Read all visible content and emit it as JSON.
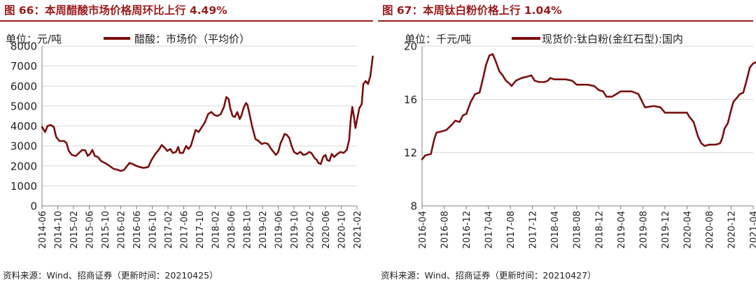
{
  "figures": [
    {
      "title": "图 66：本周醋酸市场价格周环比上行 4.49%",
      "source": "资料来源：Wind、招商证券（更新时间：20210425）"
    },
    {
      "title": "图 67：本周钛白粉价格上行 1.04%",
      "source": "资料来源：Wind、招商证券（更新时间：20210427）"
    }
  ],
  "chart_data": [
    {
      "type": "line",
      "unit_label": "单位：元/吨",
      "ylim": [
        0,
        8000
      ],
      "y_ticks": [
        0,
        1000,
        2000,
        3000,
        4000,
        5000,
        6000,
        7000,
        8000
      ],
      "x_tick_labels": [
        "2014-06",
        "2014-10",
        "2015-02",
        "2015-06",
        "2015-10",
        "2016-02",
        "2016-06",
        "2016-10",
        "2017-02",
        "2017-06",
        "2017-10",
        "2018-02",
        "2018-06",
        "2018-10",
        "2019-02",
        "2019-06",
        "2019-10",
        "2020-02",
        "2020-06",
        "2020-10",
        "2021-02"
      ],
      "grid": "horizontal",
      "line_color": "#7a0f0f",
      "legend_position": "top",
      "series": [
        {
          "name": "醋酸：市场价（平均价）",
          "points": [
            [
              0.0,
              3950
            ],
            [
              0.2,
              3700
            ],
            [
              0.35,
              4000
            ],
            [
              0.55,
              4050
            ],
            [
              0.75,
              3950
            ],
            [
              0.9,
              3450
            ],
            [
              1.1,
              3250
            ],
            [
              1.4,
              3250
            ],
            [
              1.55,
              3150
            ],
            [
              1.7,
              2750
            ],
            [
              1.9,
              2550
            ],
            [
              2.15,
              2500
            ],
            [
              2.35,
              2650
            ],
            [
              2.55,
              2800
            ],
            [
              2.75,
              2780
            ],
            [
              2.9,
              2500
            ],
            [
              3.05,
              2600
            ],
            [
              3.2,
              2800
            ],
            [
              3.35,
              2500
            ],
            [
              3.55,
              2450
            ],
            [
              3.75,
              2250
            ],
            [
              4.0,
              2150
            ],
            [
              4.3,
              2000
            ],
            [
              4.55,
              1850
            ],
            [
              4.75,
              1820
            ],
            [
              5.0,
              1750
            ],
            [
              5.2,
              1800
            ],
            [
              5.4,
              2000
            ],
            [
              5.55,
              2150
            ],
            [
              5.75,
              2100
            ],
            [
              6.0,
              2000
            ],
            [
              6.2,
              1950
            ],
            [
              6.45,
              1900
            ],
            [
              6.75,
              1950
            ],
            [
              6.95,
              2300
            ],
            [
              7.2,
              2600
            ],
            [
              7.45,
              2850
            ],
            [
              7.6,
              3050
            ],
            [
              7.8,
              2900
            ],
            [
              7.95,
              2750
            ],
            [
              8.15,
              2850
            ],
            [
              8.3,
              2650
            ],
            [
              8.5,
              2700
            ],
            [
              8.65,
              2950
            ],
            [
              8.75,
              2650
            ],
            [
              8.95,
              2650
            ],
            [
              9.15,
              3000
            ],
            [
              9.3,
              2850
            ],
            [
              9.45,
              3000
            ],
            [
              9.6,
              3400
            ],
            [
              9.75,
              3800
            ],
            [
              9.95,
              3700
            ],
            [
              10.15,
              3950
            ],
            [
              10.35,
              4200
            ],
            [
              10.55,
              4600
            ],
            [
              10.75,
              4700
            ],
            [
              10.95,
              4550
            ],
            [
              11.15,
              4500
            ],
            [
              11.35,
              4600
            ],
            [
              11.55,
              4950
            ],
            [
              11.7,
              5450
            ],
            [
              11.85,
              5350
            ],
            [
              11.95,
              4900
            ],
            [
              12.1,
              4500
            ],
            [
              12.25,
              4450
            ],
            [
              12.4,
              4700
            ],
            [
              12.55,
              4350
            ],
            [
              12.65,
              4500
            ],
            [
              12.8,
              4900
            ],
            [
              12.95,
              5150
            ],
            [
              13.05,
              5050
            ],
            [
              13.2,
              4500
            ],
            [
              13.35,
              3950
            ],
            [
              13.55,
              3350
            ],
            [
              13.75,
              3250
            ],
            [
              13.95,
              3100
            ],
            [
              14.15,
              3150
            ],
            [
              14.35,
              3100
            ],
            [
              14.55,
              2850
            ],
            [
              14.7,
              2700
            ],
            [
              14.85,
              2550
            ],
            [
              15.0,
              2700
            ],
            [
              15.15,
              3150
            ],
            [
              15.3,
              3400
            ],
            [
              15.4,
              3600
            ],
            [
              15.55,
              3550
            ],
            [
              15.7,
              3400
            ],
            [
              15.85,
              3000
            ],
            [
              16.0,
              2700
            ],
            [
              16.2,
              2600
            ],
            [
              16.4,
              2700
            ],
            [
              16.6,
              2550
            ],
            [
              16.8,
              2600
            ],
            [
              16.95,
              2700
            ],
            [
              17.1,
              2650
            ],
            [
              17.3,
              2400
            ],
            [
              17.45,
              2300
            ],
            [
              17.55,
              2150
            ],
            [
              17.7,
              2100
            ],
            [
              17.85,
              2450
            ],
            [
              18.0,
              2550
            ],
            [
              18.1,
              2300
            ],
            [
              18.25,
              2250
            ],
            [
              18.4,
              2600
            ],
            [
              18.55,
              2450
            ],
            [
              18.75,
              2600
            ],
            [
              18.95,
              2700
            ],
            [
              19.15,
              2650
            ],
            [
              19.35,
              2800
            ],
            [
              19.5,
              3300
            ],
            [
              19.6,
              4300
            ],
            [
              19.7,
              4950
            ],
            [
              19.8,
              4500
            ],
            [
              19.9,
              3900
            ],
            [
              20.0,
              4300
            ],
            [
              20.15,
              4900
            ],
            [
              20.3,
              5100
            ],
            [
              20.4,
              6100
            ],
            [
              20.55,
              6250
            ],
            [
              20.7,
              6100
            ],
            [
              20.85,
              6500
            ],
            [
              21.0,
              7480
            ]
          ]
        }
      ]
    },
    {
      "type": "line",
      "unit_label": "单位：千元/吨",
      "ylim": [
        8,
        20
      ],
      "y_ticks": [
        8,
        12,
        16,
        20
      ],
      "x_tick_labels": [
        "2016-04",
        "2016-08",
        "2016-12",
        "2017-04",
        "2017-08",
        "2017-12",
        "2018-04",
        "2018-08",
        "2018-12",
        "2019-04",
        "2019-08",
        "2019-12",
        "2020-04",
        "2020-08",
        "2020-12",
        "2021-04"
      ],
      "grid": "horizontal",
      "line_color": "#7a0f0f",
      "legend_position": "top",
      "series": [
        {
          "name": "现货价:钛白粉(金红石型):国内",
          "points": [
            [
              0.0,
              11.5
            ],
            [
              0.15,
              11.8
            ],
            [
              0.4,
              11.9
            ],
            [
              0.55,
              13.0
            ],
            [
              0.65,
              13.5
            ],
            [
              0.9,
              13.6
            ],
            [
              1.1,
              13.7
            ],
            [
              1.35,
              14.1
            ],
            [
              1.5,
              14.4
            ],
            [
              1.7,
              14.3
            ],
            [
              1.85,
              14.8
            ],
            [
              2.0,
              14.9
            ],
            [
              2.2,
              15.8
            ],
            [
              2.4,
              16.4
            ],
            [
              2.6,
              16.5
            ],
            [
              2.75,
              17.5
            ],
            [
              2.9,
              18.6
            ],
            [
              3.05,
              19.3
            ],
            [
              3.2,
              19.4
            ],
            [
              3.35,
              18.8
            ],
            [
              3.5,
              18.1
            ],
            [
              3.65,
              17.8
            ],
            [
              3.8,
              17.4
            ],
            [
              3.95,
              17.2
            ],
            [
              4.05,
              17.0
            ],
            [
              4.25,
              17.4
            ],
            [
              4.5,
              17.6
            ],
            [
              4.75,
              17.7
            ],
            [
              4.95,
              17.8
            ],
            [
              5.1,
              17.4
            ],
            [
              5.3,
              17.3
            ],
            [
              5.55,
              17.3
            ],
            [
              5.7,
              17.4
            ],
            [
              5.8,
              17.6
            ],
            [
              6.0,
              17.5
            ],
            [
              6.5,
              17.5
            ],
            [
              6.8,
              17.4
            ],
            [
              7.0,
              17.1
            ],
            [
              7.5,
              17.1
            ],
            [
              7.8,
              17.0
            ],
            [
              8.0,
              16.7
            ],
            [
              8.2,
              16.6
            ],
            [
              8.35,
              16.2
            ],
            [
              8.6,
              16.2
            ],
            [
              8.8,
              16.4
            ],
            [
              9.0,
              16.6
            ],
            [
              9.5,
              16.6
            ],
            [
              9.8,
              16.4
            ],
            [
              10.1,
              15.4
            ],
            [
              10.5,
              15.5
            ],
            [
              10.8,
              15.4
            ],
            [
              11.0,
              15.0
            ],
            [
              11.5,
              15.0
            ],
            [
              12.0,
              15.0
            ],
            [
              12.1,
              14.7
            ],
            [
              12.3,
              14.3
            ],
            [
              12.5,
              13.2
            ],
            [
              12.65,
              12.7
            ],
            [
              12.8,
              12.5
            ],
            [
              13.0,
              12.6
            ],
            [
              13.3,
              12.6
            ],
            [
              13.5,
              12.7
            ],
            [
              13.6,
              13.1
            ],
            [
              13.7,
              13.8
            ],
            [
              13.85,
              14.2
            ],
            [
              14.0,
              15.2
            ],
            [
              14.1,
              15.8
            ],
            [
              14.25,
              16.1
            ],
            [
              14.4,
              16.4
            ],
            [
              14.55,
              16.5
            ],
            [
              14.7,
              17.4
            ],
            [
              14.85,
              18.4
            ],
            [
              15.0,
              18.7
            ],
            [
              15.15,
              18.8
            ],
            [
              15.3,
              19.1
            ],
            [
              15.4,
              19.5
            ]
          ]
        }
      ]
    }
  ]
}
